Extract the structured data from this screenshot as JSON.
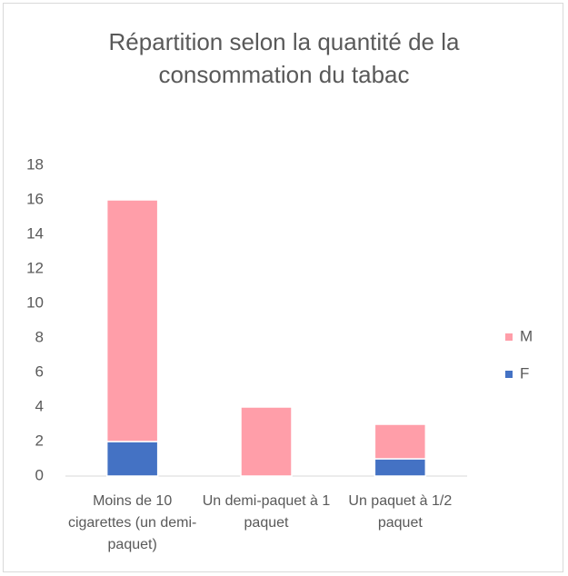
{
  "chart_data": {
    "type": "stacked_bar",
    "title": "Répartition selon la quantité de la consommation du tabac",
    "categories": [
      "Moins de 10 cigarettes (un demi-paquet)",
      "Un demi-paquet à 1 paquet",
      "Un paquet à 1/2 paquet"
    ],
    "series": [
      {
        "name": "F",
        "color": "#4472c4",
        "values": [
          2,
          0,
          1
        ]
      },
      {
        "name": "M",
        "color": "#ff9ea9",
        "values": [
          14,
          4,
          2
        ]
      }
    ],
    "ylim": [
      0,
      18
    ],
    "yticks": [
      0,
      2,
      4,
      6,
      8,
      10,
      12,
      14,
      16,
      18
    ],
    "grid": false,
    "legend": "right"
  }
}
